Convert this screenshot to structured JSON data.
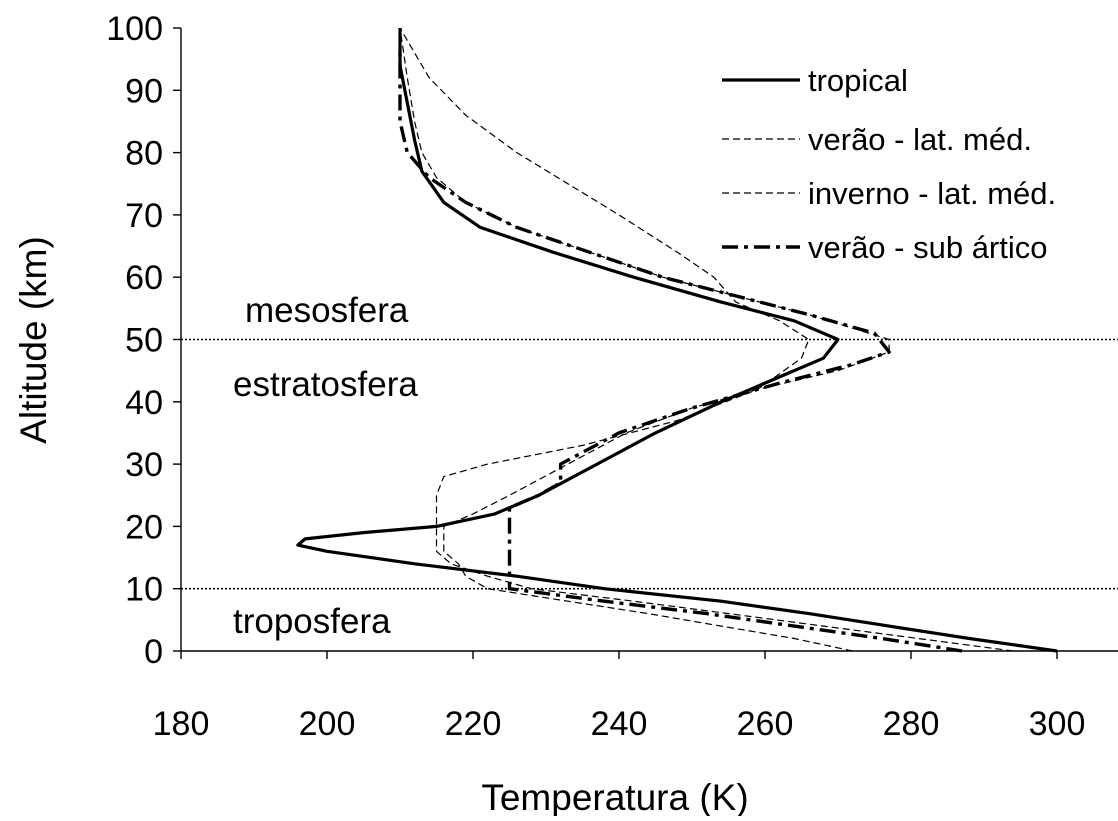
{
  "chart_data": {
    "type": "line",
    "title": "",
    "xlabel": "Temperatura (K)",
    "ylabel": "Altitude (km)",
    "xlim": [
      180,
      300
    ],
    "ylim": [
      0,
      100
    ],
    "xticks": [
      180,
      200,
      220,
      240,
      260,
      280,
      300
    ],
    "yticks": [
      0,
      10,
      20,
      30,
      40,
      50,
      60,
      70,
      80,
      90,
      100
    ],
    "grid": false,
    "legend_position": "top-right",
    "reference_lines": [
      {
        "axis": "y",
        "value": 10,
        "style": "dotted"
      },
      {
        "axis": "y",
        "value": 50,
        "style": "dotted"
      }
    ],
    "annotations": [
      {
        "text": "mesosfera",
        "x": 200,
        "y": 55
      },
      {
        "text": "estratosfera",
        "x": 200,
        "y": 42
      },
      {
        "text": "troposfera",
        "x": 200,
        "y": 5
      }
    ],
    "series": [
      {
        "name": "tropical",
        "style": "solid-thick",
        "points": [
          [
            300,
            0
          ],
          [
            288,
            2
          ],
          [
            277,
            4
          ],
          [
            266,
            6
          ],
          [
            254,
            8
          ],
          [
            238,
            10
          ],
          [
            226,
            12
          ],
          [
            212,
            14
          ],
          [
            200,
            16
          ],
          [
            196,
            17
          ],
          [
            197,
            18
          ],
          [
            205,
            19
          ],
          [
            215,
            20
          ],
          [
            223,
            22
          ],
          [
            229,
            25
          ],
          [
            237,
            30
          ],
          [
            245,
            35
          ],
          [
            254,
            40
          ],
          [
            262,
            44
          ],
          [
            268,
            47
          ],
          [
            270,
            50
          ],
          [
            264,
            53
          ],
          [
            254,
            56
          ],
          [
            242,
            60
          ],
          [
            231,
            64
          ],
          [
            221,
            68
          ],
          [
            216,
            72
          ],
          [
            213,
            77
          ],
          [
            212,
            82
          ],
          [
            211,
            88
          ],
          [
            210,
            94
          ],
          [
            210,
            100
          ]
        ]
      },
      {
        "name": "verão - lat. méd.",
        "style": "dashed-thin",
        "points": [
          [
            294,
            0
          ],
          [
            281,
            2
          ],
          [
            268,
            4
          ],
          [
            255,
            6
          ],
          [
            242,
            8
          ],
          [
            228,
            10
          ],
          [
            222,
            12
          ],
          [
            217,
            14
          ],
          [
            215,
            16
          ],
          [
            215,
            18
          ],
          [
            215,
            20
          ],
          [
            215,
            22
          ],
          [
            215,
            25
          ],
          [
            216,
            28
          ],
          [
            222,
            30
          ],
          [
            235,
            33
          ],
          [
            248,
            37
          ],
          [
            259,
            42
          ],
          [
            265,
            47
          ],
          [
            266,
            50
          ],
          [
            262,
            53
          ],
          [
            256,
            56
          ],
          [
            253,
            60
          ],
          [
            248,
            64
          ],
          [
            240,
            70
          ],
          [
            233,
            75
          ],
          [
            226,
            80
          ],
          [
            219,
            86
          ],
          [
            214,
            92
          ],
          [
            210,
            100
          ]
        ]
      },
      {
        "name": "inverno - lat. méd.",
        "style": "dashed-thin",
        "points": [
          [
            272,
            0
          ],
          [
            264,
            2
          ],
          [
            254,
            4
          ],
          [
            244,
            6
          ],
          [
            233,
            8
          ],
          [
            222,
            10
          ],
          [
            219,
            12
          ],
          [
            218,
            14
          ],
          [
            216,
            16
          ],
          [
            216,
            18
          ],
          [
            216,
            20
          ],
          [
            220,
            22
          ],
          [
            225,
            25
          ],
          [
            233,
            30
          ],
          [
            241,
            35
          ],
          [
            250,
            39
          ],
          [
            259,
            42
          ],
          [
            270,
            45
          ],
          [
            277,
            48
          ],
          [
            277,
            50
          ],
          [
            266,
            54
          ],
          [
            256,
            57
          ],
          [
            246,
            60
          ],
          [
            236,
            64
          ],
          [
            226,
            68
          ],
          [
            219,
            72
          ],
          [
            215,
            76
          ],
          [
            213,
            80
          ],
          [
            212,
            85
          ],
          [
            211,
            92
          ],
          [
            210,
            100
          ]
        ]
      },
      {
        "name": "verão - sub ártico",
        "style": "dash-dot-thick",
        "points": [
          [
            287,
            0
          ],
          [
            276,
            2
          ],
          [
            264,
            4
          ],
          [
            252,
            6
          ],
          [
            238,
            8
          ],
          [
            225,
            10
          ],
          [
            225,
            12
          ],
          [
            225,
            15
          ],
          [
            225,
            18
          ],
          [
            225,
            20
          ],
          [
            225,
            23
          ],
          [
            229,
            25
          ],
          [
            232,
            27
          ],
          [
            232,
            30
          ],
          [
            240,
            35
          ],
          [
            250,
            39
          ],
          [
            262,
            43
          ],
          [
            272,
            46
          ],
          [
            277,
            48
          ],
          [
            275,
            51
          ],
          [
            266,
            54
          ],
          [
            256,
            57
          ],
          [
            246,
            60
          ],
          [
            236,
            64
          ],
          [
            226,
            68
          ],
          [
            219,
            72
          ],
          [
            214,
            76
          ],
          [
            211,
            80
          ],
          [
            210,
            85
          ],
          [
            210,
            92
          ],
          [
            210,
            96
          ]
        ]
      }
    ]
  }
}
